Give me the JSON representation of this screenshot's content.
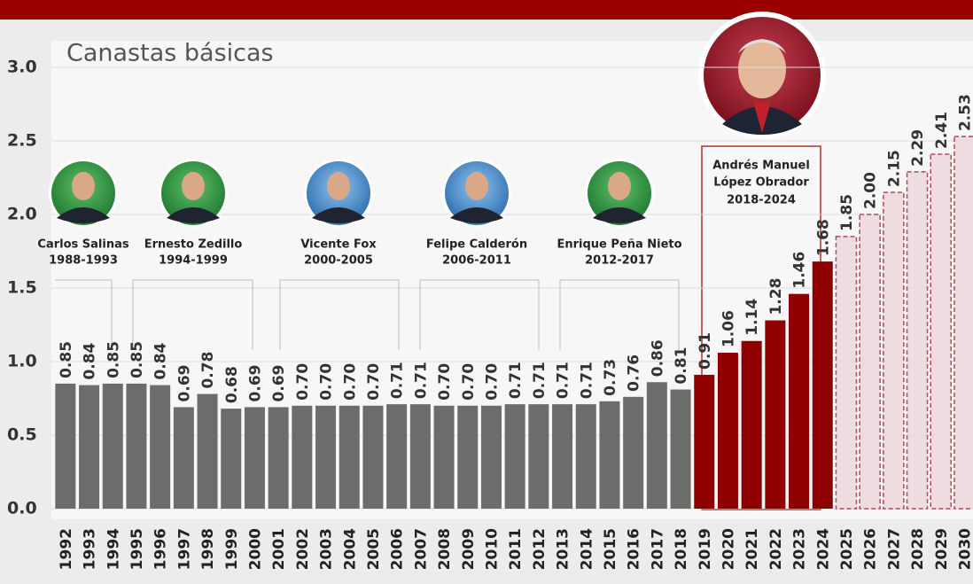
{
  "chart_data": {
    "type": "bar",
    "title": "Canastas básicas",
    "categories": [
      "1992",
      "1993",
      "1994",
      "1995",
      "1996",
      "1997",
      "1998",
      "1999",
      "2000",
      "2001",
      "2002",
      "2003",
      "2004",
      "2005",
      "2006",
      "2007",
      "2008",
      "2009",
      "2010",
      "2011",
      "2012",
      "2013",
      "2014",
      "2015",
      "2016",
      "2017",
      "2018",
      "2019",
      "2020",
      "2021",
      "2022",
      "2023",
      "2024",
      "2025",
      "2026",
      "2027",
      "2028",
      "2029",
      "2030"
    ],
    "values": [
      0.85,
      0.84,
      0.85,
      0.85,
      0.84,
      0.69,
      0.78,
      0.68,
      0.69,
      0.69,
      0.7,
      0.7,
      0.7,
      0.7,
      0.71,
      0.71,
      0.7,
      0.7,
      0.7,
      0.71,
      0.71,
      0.71,
      0.71,
      0.73,
      0.76,
      0.86,
      0.81,
      0.91,
      1.06,
      1.14,
      1.28,
      1.46,
      1.68,
      1.85,
      2.0,
      2.15,
      2.29,
      2.41,
      2.53
    ],
    "value_labels": [
      "0.85",
      "0.84",
      "0.85",
      "0.85",
      "0.84",
      "0.69",
      "0.78",
      "0.68",
      "0.69",
      "0.69",
      "0.70",
      "0.70",
      "0.70",
      "0.70",
      "0.71",
      "0.71",
      "0.70",
      "0.70",
      "0.70",
      "0.71",
      "0.71",
      "0.71",
      "0.71",
      "0.73",
      "0.76",
      "0.86",
      "0.81",
      "0.91",
      "1.06",
      "1.14",
      "1.28",
      "1.46",
      "1.68",
      "1.85",
      "2.00",
      "2.15",
      "2.29",
      "2.41",
      "2.53"
    ],
    "colors": [
      "#6a6d6a",
      "#6a6d6a",
      "#6a6d6a",
      "#6a6d6a",
      "#6a6d6a",
      "#6a6d6a",
      "#6a6d6a",
      "#6a6d6a",
      "#6a6d6a",
      "#6a6d6a",
      "#6a6d6a",
      "#6a6d6a",
      "#6a6d6a",
      "#6a6d6a",
      "#6a6d6a",
      "#6a6d6a",
      "#6a6d6a",
      "#6a6d6a",
      "#6a6d6a",
      "#6a6d6a",
      "#6a6d6a",
      "#6a6d6a",
      "#6a6d6a",
      "#6a6d6a",
      "#6a6d6a",
      "#6a6d6a",
      "#6a6d6a",
      "#8e0000",
      "#8e0000",
      "#8e0000",
      "#8e0000",
      "#8e0000",
      "#8e0000",
      "#ecd4d9",
      "#ecd4d9",
      "#ecd4d9",
      "#ecd4d9",
      "#ecd4d9",
      "#ecd4d9"
    ],
    "dashed": [
      false,
      false,
      false,
      false,
      false,
      false,
      false,
      false,
      false,
      false,
      false,
      false,
      false,
      false,
      false,
      false,
      false,
      false,
      false,
      false,
      false,
      false,
      false,
      false,
      false,
      false,
      false,
      false,
      false,
      false,
      false,
      false,
      false,
      true,
      true,
      true,
      true,
      true,
      true
    ],
    "ylim": [
      0,
      3
    ],
    "yticks": [
      {
        "value": 0,
        "label": "0.0"
      },
      0.5,
      {
        "value": 1,
        "label": "1.0"
      },
      1.5,
      {
        "value": 2,
        "label": "2.0"
      },
      2.5,
      {
        "value": 3,
        "label": "3.0"
      }
    ],
    "grid": true,
    "presidents": [
      {
        "name": "Carlos Salinas",
        "term": "1988-1993"
      },
      {
        "name": "Ernesto Zedillo",
        "term": "1994-1999"
      },
      {
        "name": "Vicente Fox",
        "term": "2000-2005"
      },
      {
        "name": "Felipe Calderón",
        "term": "2006-2011"
      },
      {
        "name": "Enrique Peña Nieto",
        "term": "2012-2017"
      }
    ],
    "highlight": {
      "name_lines": [
        "Andrés Manuel",
        "López Obrador"
      ],
      "term": "2018-2024"
    }
  }
}
